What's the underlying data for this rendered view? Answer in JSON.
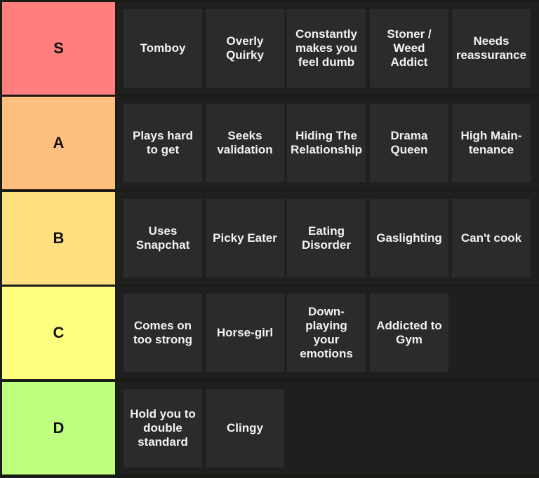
{
  "tiers": [
    {
      "label": "S",
      "color": "#ff7f7f",
      "items": [
        "Tomboy",
        "Overly\nQuirky",
        "Constantly\nmakes you\nfeel dumb",
        "Stoner /\nWeed\nAddict",
        "Needs\nreassurance"
      ]
    },
    {
      "label": "A",
      "color": "#ffbf7f",
      "items": [
        "Plays hard\nto get",
        "Seeks\nvalidation",
        "Hiding The\nRelationship",
        "Drama\nQueen",
        "High Main-\ntenance"
      ]
    },
    {
      "label": "B",
      "color": "#ffdf7f",
      "items": [
        "Uses\nSnapchat",
        "Picky Eater",
        "Eating\nDisorder",
        "Gaslighting",
        "Can't cook"
      ]
    },
    {
      "label": "C",
      "color": "#ffff7f",
      "items": [
        "Comes on\ntoo strong",
        "Horse-girl",
        "Down-\nplaying\nyour\nemotions",
        "Addicted to\nGym"
      ]
    },
    {
      "label": "D",
      "color": "#bfff7f",
      "items": [
        "Hold you to\ndouble\nstandard",
        "Clingy"
      ]
    }
  ]
}
